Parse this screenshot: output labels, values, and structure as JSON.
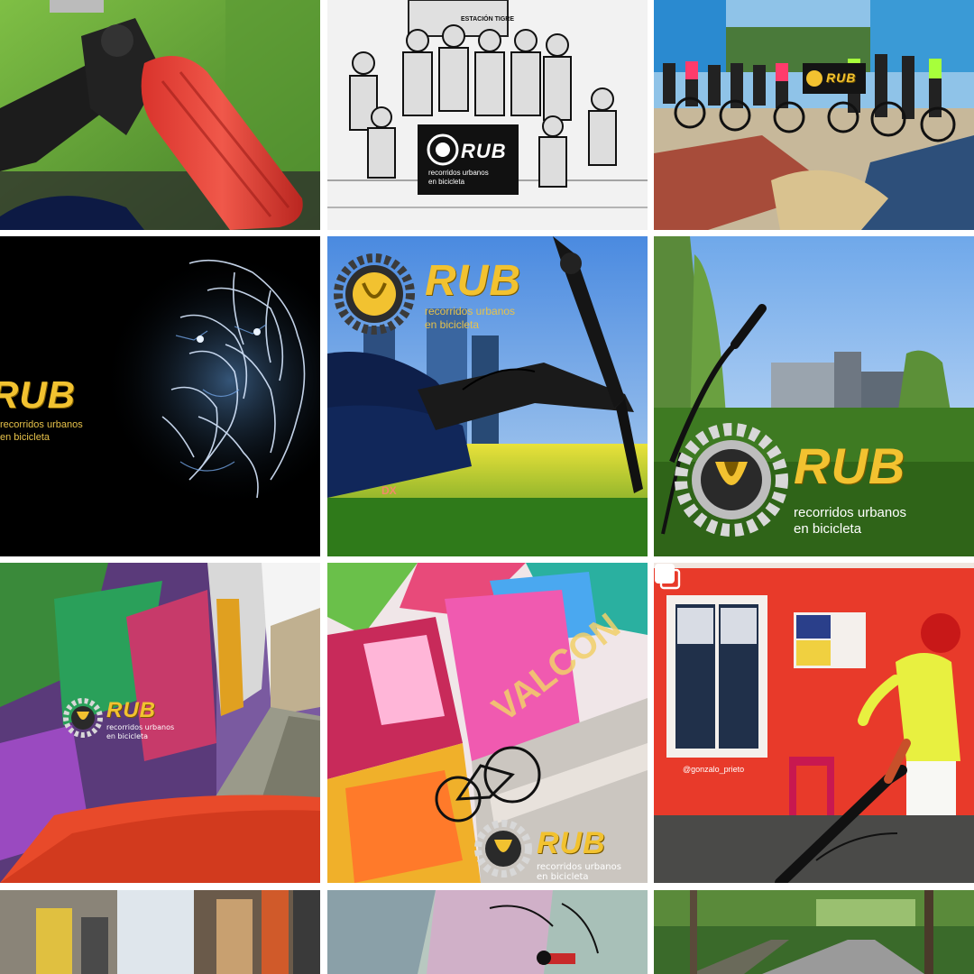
{
  "grid": {
    "tiles": [
      {
        "id": "bike-grip",
        "subject": "red handlebar grip",
        "labels": {}
      },
      {
        "id": "group-sketch",
        "subject": "group photo sketch",
        "labels": {
          "station_sign": "ESTACIÓN TIGRE",
          "rub": "RUB",
          "tagline_1": "recorridos urbanos",
          "tagline_2": "en bicicleta"
        }
      },
      {
        "id": "group-mural",
        "subject": "riders on painted plaza",
        "labels": {
          "rub": "RUB"
        }
      },
      {
        "id": "tiger-logo",
        "subject": "electric tiger",
        "labels": {
          "rub": "RUB",
          "tagline_1": "recorridos urbanos",
          "tagline_2": "en bicicleta"
        }
      },
      {
        "id": "bike-skyline",
        "subject": "bike over grass",
        "labels": {
          "rub": "RUB",
          "tagline_1": "recorridos urbanos",
          "tagline_2": "en bicicleta",
          "frame_text": "DX"
        }
      },
      {
        "id": "park-logo",
        "subject": "park with silos",
        "labels": {
          "rub": "RUB",
          "tagline_1": "recorridos urbanos",
          "tagline_2": "en bicicleta"
        }
      },
      {
        "id": "graffiti-alley",
        "subject": "graffiti alley",
        "labels": {
          "rub": "RUB",
          "tagline_1": "recorridos urbanos",
          "tagline_2": "en bicicleta"
        }
      },
      {
        "id": "colorful-mural",
        "subject": "bike against mural",
        "labels": {
          "mural_word": "VALCON",
          "rub": "RUB",
          "tagline_1": "recorridos urbanos",
          "tagline_2": "en bicicleta"
        }
      },
      {
        "id": "red-mural",
        "subject": "red painted wall",
        "labels": {
          "credit": "@gonzalo_prieto"
        },
        "multi": true
      },
      {
        "id": "street-1",
        "subject": "street facades",
        "labels": {}
      },
      {
        "id": "street-2",
        "subject": "graffiti wall",
        "labels": {}
      },
      {
        "id": "street-3",
        "subject": "tree lined road",
        "labels": {}
      }
    ]
  },
  "colors": {
    "logo_gold": "#f2c230",
    "gear_silver": "#cfcfcf",
    "grid_gap": "#ffffff"
  },
  "icons": {
    "multi_post": "multiple-images-icon"
  }
}
